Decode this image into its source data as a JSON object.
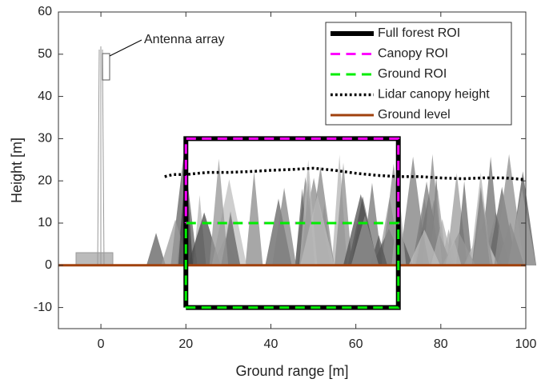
{
  "chart_data": {
    "type": "line",
    "xlabel": "Ground range [m]",
    "ylabel": "Height [m]",
    "xlim": [
      -10,
      100
    ],
    "ylim": [
      -15,
      60
    ],
    "xticks": [
      0,
      20,
      40,
      60,
      80,
      100
    ],
    "yticks": [
      -10,
      0,
      10,
      20,
      30,
      40,
      50,
      60
    ],
    "annotation": "Antenna array",
    "legend": "upper right",
    "series": [
      {
        "name": "Full forest ROI",
        "color": "#000000",
        "style": "solid",
        "width": 6,
        "x": [
          20,
          70,
          70,
          20,
          20
        ],
        "values": [
          -10,
          -10,
          30,
          30,
          -10
        ]
      },
      {
        "name": "Canopy ROI",
        "color": "#ff00ff",
        "style": "dashed",
        "width": 3,
        "x": [
          20,
          70,
          70,
          20,
          20
        ],
        "values": [
          10,
          10,
          30,
          30,
          10
        ]
      },
      {
        "name": "Ground ROI",
        "color": "#00ee00",
        "style": "dashed",
        "width": 3,
        "x": [
          20,
          70,
          70,
          20,
          20
        ],
        "values": [
          -10,
          -10,
          10,
          10,
          -10
        ]
      },
      {
        "name": "Lidar canopy height",
        "color": "#000000",
        "style": "dotted",
        "width": 3.5,
        "x": [
          15,
          17,
          20,
          25,
          30,
          35,
          40,
          45,
          50,
          55,
          60,
          65,
          70,
          75,
          80,
          85,
          90,
          95,
          100
        ],
        "values": [
          21,
          21.5,
          21.5,
          22,
          22,
          22.2,
          22.5,
          22.7,
          23,
          22.5,
          21.8,
          21.3,
          21,
          21,
          20.7,
          20.5,
          20.7,
          20.7,
          20.3
        ]
      },
      {
        "name": "Ground level",
        "color": "#a0410d",
        "style": "solid",
        "width": 3,
        "x": [
          -10,
          100
        ],
        "values": [
          0,
          0
        ]
      }
    ]
  }
}
